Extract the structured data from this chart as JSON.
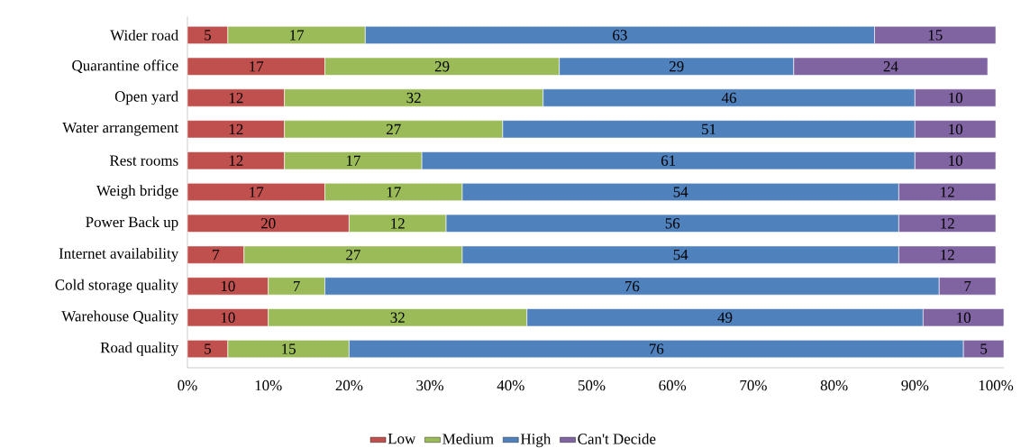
{
  "chart_data": {
    "type": "bar",
    "orientation": "horizontal",
    "stacked": true,
    "data_labels": true,
    "legend": "bottom",
    "grid": false,
    "categories": [
      "Wider road",
      "Quarantine office",
      "Open yard",
      "Water arrangement",
      "Rest rooms",
      "Weigh bridge",
      "Power Back up",
      "Internet availability",
      "Cold storage quality",
      "Warehouse Quality",
      "Road quality"
    ],
    "series": [
      {
        "name": "Low",
        "color": "#c0504d",
        "values": [
          5,
          17,
          12,
          12,
          12,
          17,
          20,
          7,
          10,
          10,
          5
        ]
      },
      {
        "name": "Medium",
        "color": "#9bbb59",
        "values": [
          17,
          29,
          32,
          27,
          17,
          17,
          12,
          27,
          7,
          32,
          15
        ]
      },
      {
        "name": "High",
        "color": "#4f81bd",
        "values": [
          63,
          29,
          46,
          51,
          61,
          54,
          56,
          54,
          76,
          49,
          76
        ]
      },
      {
        "name": "Can't Decide",
        "color": "#8064a2",
        "values": [
          15,
          24,
          10,
          10,
          10,
          12,
          12,
          12,
          7,
          10,
          5
        ]
      }
    ],
    "xlim": [
      0,
      101
    ],
    "xticks": [
      {
        "value": 0,
        "label": "0%"
      },
      {
        "value": 10,
        "label": "10%"
      },
      {
        "value": 20,
        "label": "20%"
      },
      {
        "value": 30,
        "label": "30%"
      },
      {
        "value": 40,
        "label": "40%"
      },
      {
        "value": 50,
        "label": "50%"
      },
      {
        "value": 60,
        "label": "60%"
      },
      {
        "value": 70,
        "label": "70%"
      },
      {
        "value": 80,
        "label": "80%"
      },
      {
        "value": 90,
        "label": "90%"
      },
      {
        "value": 100,
        "label": "100%"
      }
    ]
  }
}
